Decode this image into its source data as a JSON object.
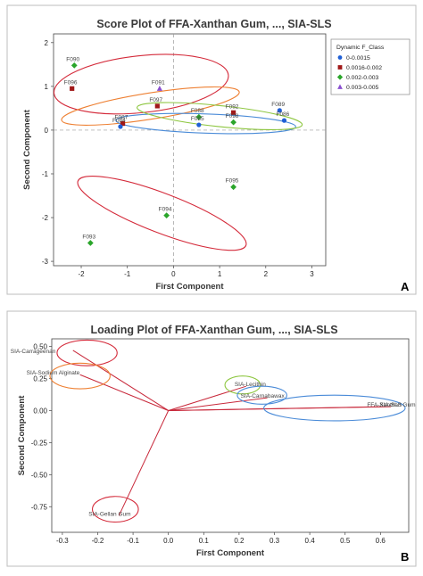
{
  "chart_data": [
    {
      "type": "scatter",
      "panel_letter": "A",
      "title": "Score Plot of FFA-Xanthan Gum, ..., SIA-SLS",
      "xlabel": "First Component",
      "ylabel": "Second Component",
      "xlim": [
        -2.6,
        3.3
      ],
      "ylim": [
        -3.1,
        2.2
      ],
      "xticks": [
        "-2",
        "-1",
        "0",
        "1",
        "2",
        "3"
      ],
      "yticks": [
        "2",
        "1",
        "0",
        "-1",
        "-2",
        "-3"
      ],
      "grid": false,
      "reference_lines": {
        "x": 0,
        "y": 0
      },
      "legend": {
        "title": "Dynamic F_Class",
        "position": "right",
        "items": [
          {
            "label": "0-0.0015",
            "color": "#1f5fd6",
            "marker": "circle"
          },
          {
            "label": "0.0016-0.002",
            "color": "#a01818",
            "marker": "square"
          },
          {
            "label": "0.002-0.003",
            "color": "#2aa52a",
            "marker": "diamond"
          },
          {
            "label": "0.003-0.005",
            "color": "#8a4fd0",
            "marker": "triangle"
          }
        ]
      },
      "points": [
        {
          "label": "F090",
          "x": -2.15,
          "y": 1.48,
          "class": 2
        },
        {
          "label": "F096",
          "x": -2.2,
          "y": 0.95,
          "class": 1
        },
        {
          "label": "F091",
          "x": -0.3,
          "y": 0.95,
          "class": 3
        },
        {
          "label": "F097",
          "x": -0.35,
          "y": 0.55,
          "class": 1
        },
        {
          "label": "F087",
          "x": -1.1,
          "y": 0.15,
          "class": 1
        },
        {
          "label": "F084",
          "x": -1.15,
          "y": 0.08,
          "class": 0
        },
        {
          "label": "F088",
          "x": 0.55,
          "y": 0.3,
          "class": 2
        },
        {
          "label": "F085",
          "x": 0.55,
          "y": 0.12,
          "class": 0
        },
        {
          "label": "F092",
          "x": 1.3,
          "y": 0.4,
          "class": 1
        },
        {
          "label": "F098",
          "x": 1.3,
          "y": 0.18,
          "class": 2
        },
        {
          "label": "F089",
          "x": 2.3,
          "y": 0.45,
          "class": 0
        },
        {
          "label": "F086",
          "x": 2.4,
          "y": 0.22,
          "class": 0
        },
        {
          "label": "F095",
          "x": 1.3,
          "y": -1.3,
          "class": 2
        },
        {
          "label": "F094",
          "x": -0.15,
          "y": -1.95,
          "class": 2
        },
        {
          "label": "F093",
          "x": -1.8,
          "y": -2.58,
          "class": 2
        }
      ],
      "ellipses": [
        {
          "color": "#d42a3a",
          "cx": -0.7,
          "cy": 1.05,
          "rx": 1.9,
          "ry": 0.65,
          "angle": -6
        },
        {
          "color": "#ee8033",
          "cx": -0.5,
          "cy": 0.55,
          "rx": 1.95,
          "ry": 0.3,
          "angle": -9
        },
        {
          "color": "#4a8bd8",
          "cx": 0.7,
          "cy": 0.15,
          "rx": 1.95,
          "ry": 0.22,
          "angle": 2
        },
        {
          "color": "#8dc63f",
          "cx": 1.0,
          "cy": 0.32,
          "rx": 1.8,
          "ry": 0.24,
          "angle": 6
        },
        {
          "color": "#d42a3a",
          "cx": -0.25,
          "cy": -1.9,
          "rx": 1.95,
          "ry": 0.45,
          "angle": 21
        }
      ]
    },
    {
      "type": "scatter",
      "panel_letter": "B",
      "title": "Loading Plot of FFA-Xanthan Gum, ..., SIA-SLS",
      "xlabel": "First Component",
      "ylabel": "Second Component",
      "xlim": [
        -0.33,
        0.68
      ],
      "ylim": [
        -0.95,
        0.56
      ],
      "xticks": [
        "-0.3",
        "-0.2",
        "-0.1",
        "0.0",
        "0.1",
        "0.2",
        "0.3",
        "0.4",
        "0.5",
        "0.6"
      ],
      "yticks": [
        "0.50",
        "0.25",
        "0.00",
        "-0.25",
        "-0.50",
        "-0.75"
      ],
      "grid": false,
      "origin": {
        "x": 0,
        "y": 0
      },
      "vectors": [
        {
          "label": "SIA-Carrageenan",
          "x": -0.27,
          "y": 0.47
        },
        {
          "label": "SIA-Sodium Alginate",
          "x": -0.25,
          "y": 0.28
        },
        {
          "label": "SIA-Gellan Gum",
          "x": -0.14,
          "y": -0.82
        },
        {
          "label": "SIA-Lecithin",
          "x": 0.22,
          "y": 0.19
        },
        {
          "label": "SIA-Carnabawax",
          "x": 0.28,
          "y": 0.1
        },
        {
          "label": "FFA-Xanthan Gum",
          "x": 0.6,
          "y": 0.03
        },
        {
          "label": "SIA-SLS",
          "x": 0.63,
          "y": 0.03
        }
      ],
      "ellipses": [
        {
          "color": "#d42a3a",
          "cx": -0.23,
          "cy": 0.45,
          "rx": 0.085,
          "ry": 0.1,
          "angle": 0
        },
        {
          "color": "#ee8033",
          "cx": -0.25,
          "cy": 0.27,
          "rx": 0.085,
          "ry": 0.1,
          "angle": 0
        },
        {
          "color": "#d42a3a",
          "cx": -0.15,
          "cy": -0.77,
          "rx": 0.065,
          "ry": 0.1,
          "angle": 0
        },
        {
          "color": "#8dc63f",
          "cx": 0.21,
          "cy": 0.2,
          "rx": 0.05,
          "ry": 0.07,
          "angle": 0
        },
        {
          "color": "#4a8bd8",
          "cx": 0.265,
          "cy": 0.12,
          "rx": 0.07,
          "ry": 0.07,
          "angle": 0
        },
        {
          "color": "#4a8bd8",
          "cx": 0.47,
          "cy": 0.02,
          "rx": 0.2,
          "ry": 0.1,
          "angle": 0
        }
      ]
    }
  ]
}
